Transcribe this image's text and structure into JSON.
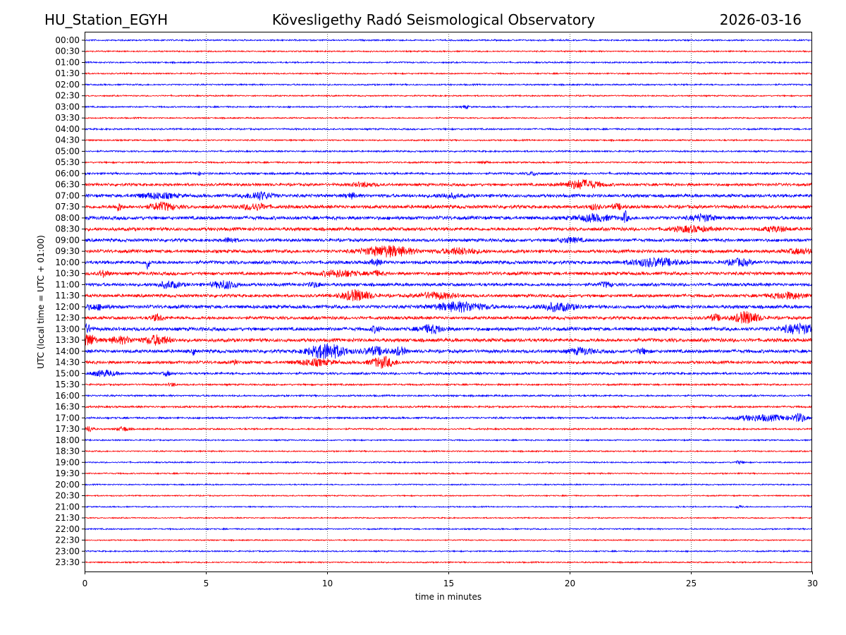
{
  "header": {
    "station": "HU_Station_EGYH",
    "observatory": "Kövesligethy Radó Seismological Observatory",
    "date": "2026-03-16"
  },
  "chart_data": {
    "type": "line",
    "title": "Kövesligethy Radó Seismological Observatory",
    "xlabel": "time in minutes",
    "ylabel": "UTC (local time = UTC + 01:00)",
    "xlim": [
      0,
      30
    ],
    "xticks": [
      "0",
      "5",
      "10",
      "15",
      "20",
      "25",
      "30"
    ],
    "grid": "vertical dotted at x ticks",
    "colors": [
      "#0000ff",
      "#ff0000"
    ],
    "rows": [
      {
        "label": "00:00",
        "noise": 1.1,
        "events": []
      },
      {
        "label": "00:30",
        "noise": 1.0,
        "events": []
      },
      {
        "label": "01:00",
        "noise": 1.1,
        "events": []
      },
      {
        "label": "01:30",
        "noise": 1.0,
        "events": []
      },
      {
        "label": "02:00",
        "noise": 1.1,
        "events": []
      },
      {
        "label": "02:30",
        "noise": 1.0,
        "events": []
      },
      {
        "label": "03:00",
        "noise": 1.1,
        "events": [
          [
            15.7,
            2,
            0.3
          ]
        ]
      },
      {
        "label": "03:30",
        "noise": 1.0,
        "events": []
      },
      {
        "label": "04:00",
        "noise": 1.2,
        "events": []
      },
      {
        "label": "04:30",
        "noise": 1.1,
        "events": []
      },
      {
        "label": "05:00",
        "noise": 1.2,
        "events": []
      },
      {
        "label": "05:30",
        "noise": 1.2,
        "events": [
          [
            16.5,
            1.5,
            0.3
          ]
        ]
      },
      {
        "label": "06:00",
        "noise": 1.6,
        "events": [
          [
            4.7,
            2,
            0.2
          ],
          [
            18.5,
            2,
            0.5
          ]
        ]
      },
      {
        "label": "06:30",
        "noise": 2.0,
        "events": [
          [
            20.5,
            6,
            1.5
          ],
          [
            11.5,
            2.5,
            1
          ]
        ]
      },
      {
        "label": "07:00",
        "noise": 2.4,
        "events": [
          [
            3,
            3.5,
            1.5
          ],
          [
            7.2,
            5,
            1
          ],
          [
            11,
            3,
            0.5
          ],
          [
            15,
            2.5,
            1
          ]
        ]
      },
      {
        "label": "07:30",
        "noise": 2.5,
        "events": [
          [
            1.4,
            5,
            0.3
          ],
          [
            3.2,
            5,
            1
          ],
          [
            7,
            4,
            1
          ],
          [
            21,
            3,
            0.5
          ],
          [
            22,
            3,
            0.5
          ]
        ]
      },
      {
        "label": "08:00",
        "noise": 2.6,
        "events": [
          [
            21,
            4,
            1.5
          ],
          [
            22.3,
            8,
            0.2
          ],
          [
            25.5,
            4,
            1
          ]
        ]
      },
      {
        "label": "08:30",
        "noise": 2.5,
        "events": [
          [
            25,
            3.5,
            1.5
          ],
          [
            28.5,
            3,
            1
          ]
        ]
      },
      {
        "label": "09:00",
        "noise": 2.3,
        "events": [
          [
            20,
            3,
            1
          ],
          [
            6,
            3,
            0.5
          ]
        ]
      },
      {
        "label": "09:30",
        "noise": 2.4,
        "events": [
          [
            12.5,
            7,
            2
          ],
          [
            15.5,
            4,
            1.5
          ],
          [
            29.5,
            3,
            1
          ]
        ]
      },
      {
        "label": "10:00",
        "noise": 2.5,
        "events": [
          [
            2.6,
            10,
            0.15
          ],
          [
            23.5,
            5,
            2
          ],
          [
            27,
            4,
            1
          ],
          [
            12,
            3,
            0.5
          ]
        ]
      },
      {
        "label": "10:30",
        "noise": 2.4,
        "events": [
          [
            0.8,
            4,
            0.4
          ],
          [
            10.5,
            4,
            1.5
          ],
          [
            12,
            3,
            0.5
          ]
        ]
      },
      {
        "label": "11:00",
        "noise": 2.3,
        "events": [
          [
            3.5,
            4,
            1
          ],
          [
            5.8,
            5,
            1
          ],
          [
            9.5,
            3,
            0.5
          ],
          [
            21.5,
            3,
            0.5
          ]
        ]
      },
      {
        "label": "11:30",
        "noise": 2.3,
        "events": [
          [
            11.2,
            7,
            1.2
          ],
          [
            14.5,
            4,
            1.5
          ],
          [
            29,
            4,
            1.5
          ]
        ]
      },
      {
        "label": "12:00",
        "noise": 2.5,
        "events": [
          [
            0.5,
            3,
            1
          ],
          [
            15.5,
            6,
            2
          ],
          [
            19.5,
            5,
            1.5
          ]
        ]
      },
      {
        "label": "12:30",
        "noise": 2.3,
        "events": [
          [
            3,
            4,
            0.5
          ],
          [
            27.3,
            8,
            1
          ],
          [
            26,
            4,
            0.5
          ]
        ]
      },
      {
        "label": "13:00",
        "noise": 2.6,
        "events": [
          [
            0.1,
            5,
            0.4
          ],
          [
            12,
            4,
            0.4
          ],
          [
            14.3,
            5,
            1
          ],
          [
            29.5,
            6,
            1.5
          ]
        ]
      },
      {
        "label": "13:30",
        "noise": 2.6,
        "events": [
          [
            0.2,
            8,
            0.5
          ],
          [
            3,
            6,
            1
          ],
          [
            1.5,
            4,
            1
          ]
        ]
      },
      {
        "label": "14:00",
        "noise": 2.5,
        "events": [
          [
            10,
            10,
            1.5
          ],
          [
            12,
            5,
            1
          ],
          [
            13,
            5,
            0.5
          ],
          [
            4.5,
            5,
            0.1
          ],
          [
            20.5,
            4,
            1
          ],
          [
            23,
            3,
            0.5
          ]
        ]
      },
      {
        "label": "14:30",
        "noise": 2.2,
        "events": [
          [
            9.5,
            4,
            1.5
          ],
          [
            12.3,
            7,
            1
          ],
          [
            6.2,
            4,
            0.1
          ]
        ]
      },
      {
        "label": "15:00",
        "noise": 1.7,
        "events": [
          [
            0.8,
            4,
            1
          ],
          [
            3.4,
            3,
            0.3
          ]
        ]
      },
      {
        "label": "15:30",
        "noise": 1.3,
        "events": [
          [
            3.6,
            2.5,
            0.3
          ]
        ]
      },
      {
        "label": "16:00",
        "noise": 1.3,
        "events": []
      },
      {
        "label": "16:30",
        "noise": 1.4,
        "events": []
      },
      {
        "label": "17:00",
        "noise": 1.4,
        "events": [
          [
            28,
            4,
            2.5
          ],
          [
            29.5,
            5,
            0.5
          ]
        ]
      },
      {
        "label": "17:30",
        "noise": 1.2,
        "events": [
          [
            0.2,
            4,
            0.3
          ],
          [
            1.6,
            3,
            0.5
          ]
        ]
      },
      {
        "label": "18:00",
        "noise": 1.0,
        "events": []
      },
      {
        "label": "18:30",
        "noise": 1.0,
        "events": []
      },
      {
        "label": "19:00",
        "noise": 1.0,
        "events": [
          [
            27,
            2,
            0.4
          ]
        ]
      },
      {
        "label": "19:30",
        "noise": 1.0,
        "events": []
      },
      {
        "label": "20:00",
        "noise": 0.9,
        "events": []
      },
      {
        "label": "20:30",
        "noise": 0.9,
        "events": []
      },
      {
        "label": "21:00",
        "noise": 0.9,
        "events": [
          [
            27,
            2,
            0.3
          ]
        ]
      },
      {
        "label": "21:30",
        "noise": 0.9,
        "events": []
      },
      {
        "label": "22:00",
        "noise": 1.0,
        "events": []
      },
      {
        "label": "22:30",
        "noise": 0.9,
        "events": []
      },
      {
        "label": "23:00",
        "noise": 1.0,
        "events": []
      },
      {
        "label": "23:30",
        "noise": 1.0,
        "events": []
      }
    ]
  }
}
